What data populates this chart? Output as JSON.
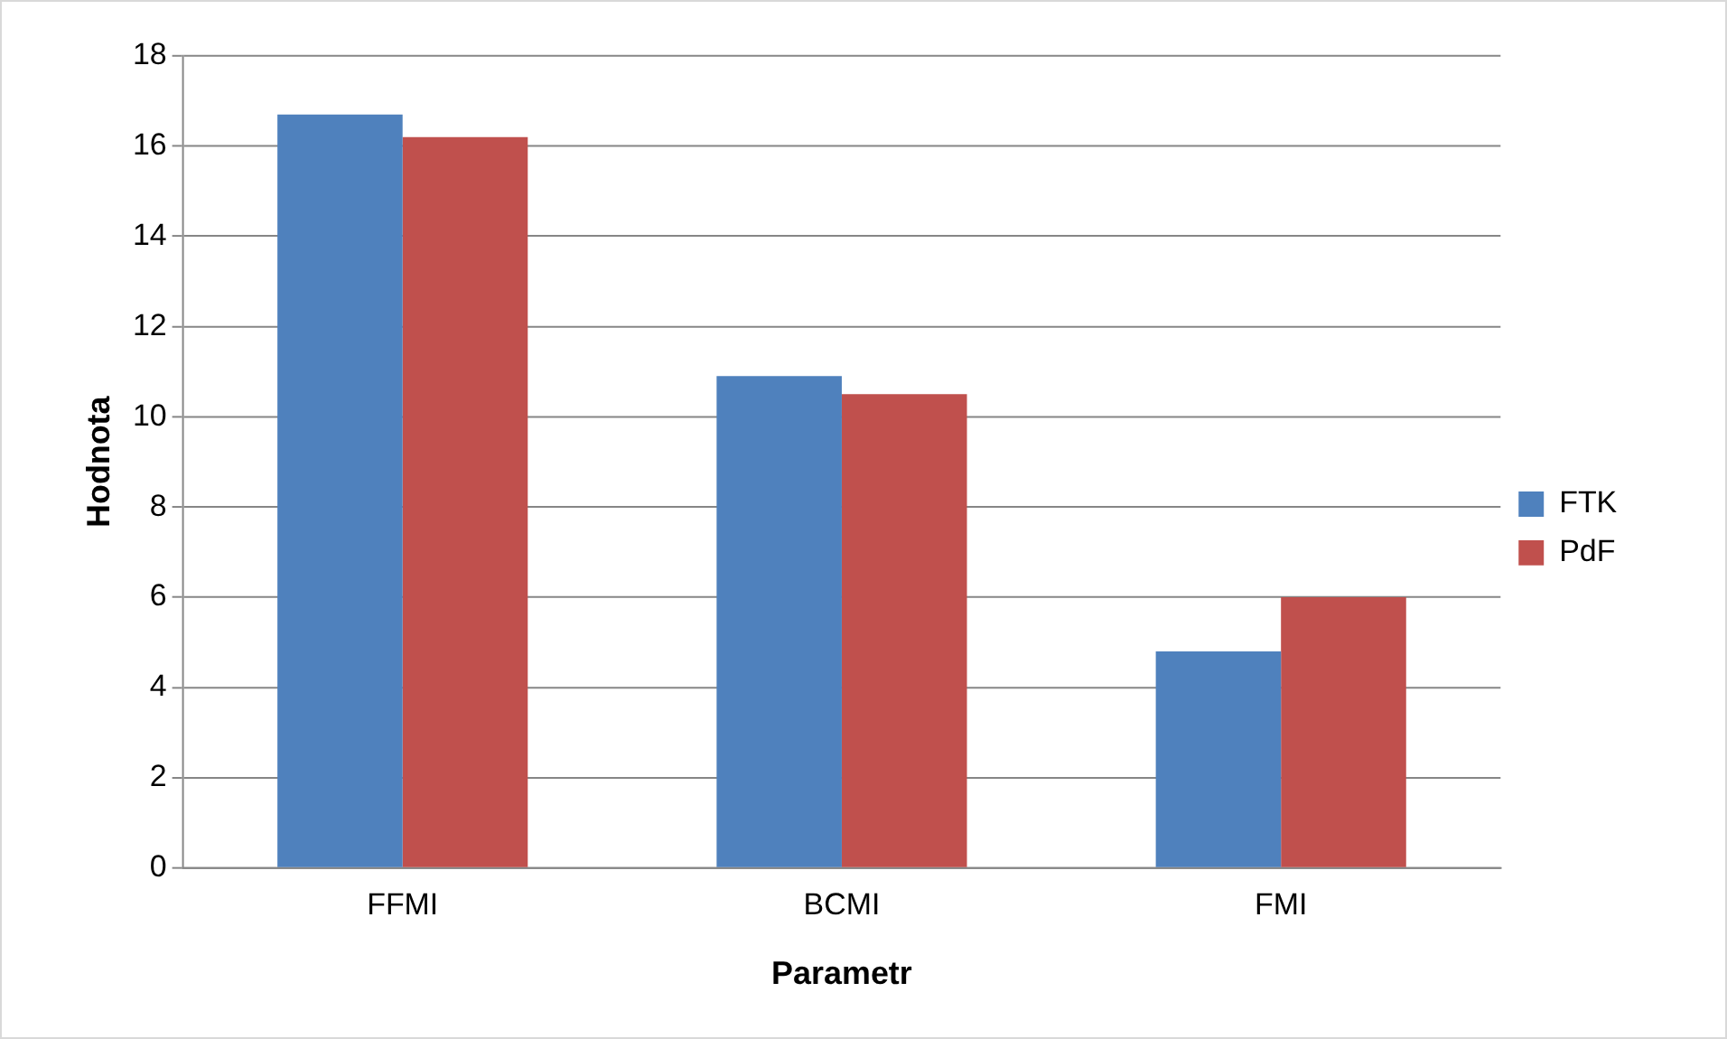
{
  "chart_data": {
    "type": "bar",
    "xlabel": "Parametr",
    "ylabel": "Hodnota",
    "categories": [
      "FFMI",
      "BCMI",
      "FMI"
    ],
    "series": [
      {
        "name": "FTK",
        "color": "#4f81bd",
        "values": [
          16.7,
          10.9,
          4.8
        ]
      },
      {
        "name": "PdF",
        "color": "#c0504d",
        "values": [
          16.2,
          10.5,
          6.0
        ]
      }
    ],
    "ylim": [
      0,
      18
    ],
    "yticks": [
      0,
      2,
      4,
      6,
      8,
      10,
      12,
      14,
      16,
      18
    ],
    "grid": "y",
    "legend": "right"
  }
}
